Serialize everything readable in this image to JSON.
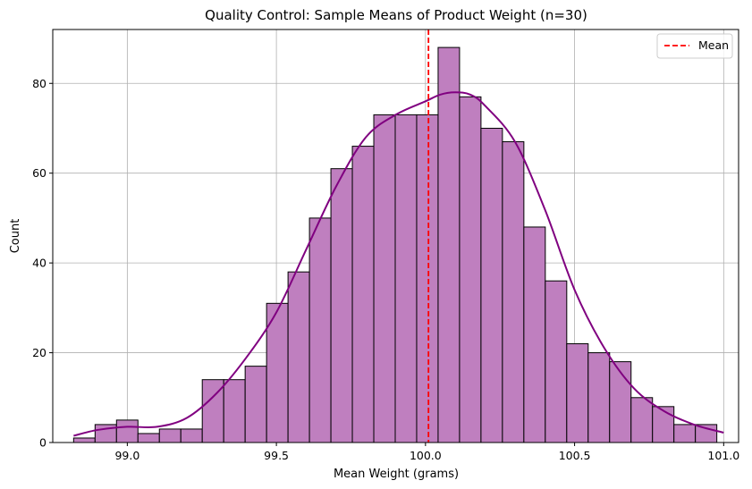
{
  "chart_data": {
    "type": "bar",
    "title": "Quality Control: Sample Means of Product Weight (n=30)",
    "xlabel": "Mean Weight (grams)",
    "ylabel": "Count",
    "xlim": [
      98.75,
      101.05
    ],
    "ylim": [
      0,
      92
    ],
    "x_ticks": [
      99.0,
      99.5,
      100.0,
      100.5,
      101.0
    ],
    "x_tick_labels": [
      "99.0",
      "99.5",
      "100.0",
      "100.5",
      "101.0"
    ],
    "y_ticks": [
      0,
      20,
      40,
      60,
      80
    ],
    "y_tick_labels": [
      "0",
      "20",
      "40",
      "60",
      "80"
    ],
    "grid": true,
    "legend_position": "top-right",
    "bin_start": 98.82,
    "bin_width": 0.0719,
    "counts": [
      1,
      4,
      5,
      2,
      3,
      3,
      14,
      14,
      17,
      31,
      38,
      50,
      61,
      66,
      73,
      73,
      73,
      88,
      77,
      70,
      67,
      48,
      36,
      22,
      20,
      18,
      10,
      8,
      4,
      4
    ],
    "bar_color": "#bf7fbf",
    "bar_edge_color": "#000000",
    "kde": {
      "x": [
        98.82,
        98.9,
        99.0,
        99.1,
        99.2,
        99.3,
        99.4,
        99.5,
        99.6,
        99.7,
        99.8,
        99.9,
        100.0,
        100.05,
        100.1,
        100.15,
        100.2,
        100.3,
        100.4,
        100.5,
        100.6,
        100.7,
        100.8,
        100.9,
        101.0
      ],
      "y": [
        1.5,
        2.8,
        3.5,
        3.5,
        5.5,
        11,
        19,
        29,
        43,
        57,
        68,
        73,
        76,
        77.5,
        78,
        77.5,
        75,
        67,
        52,
        34,
        21,
        12,
        7,
        4,
        2.2
      ],
      "color": "#800080"
    },
    "mean_line": {
      "name": "Mean",
      "x": 100.01,
      "color": "#ff0000"
    }
  }
}
